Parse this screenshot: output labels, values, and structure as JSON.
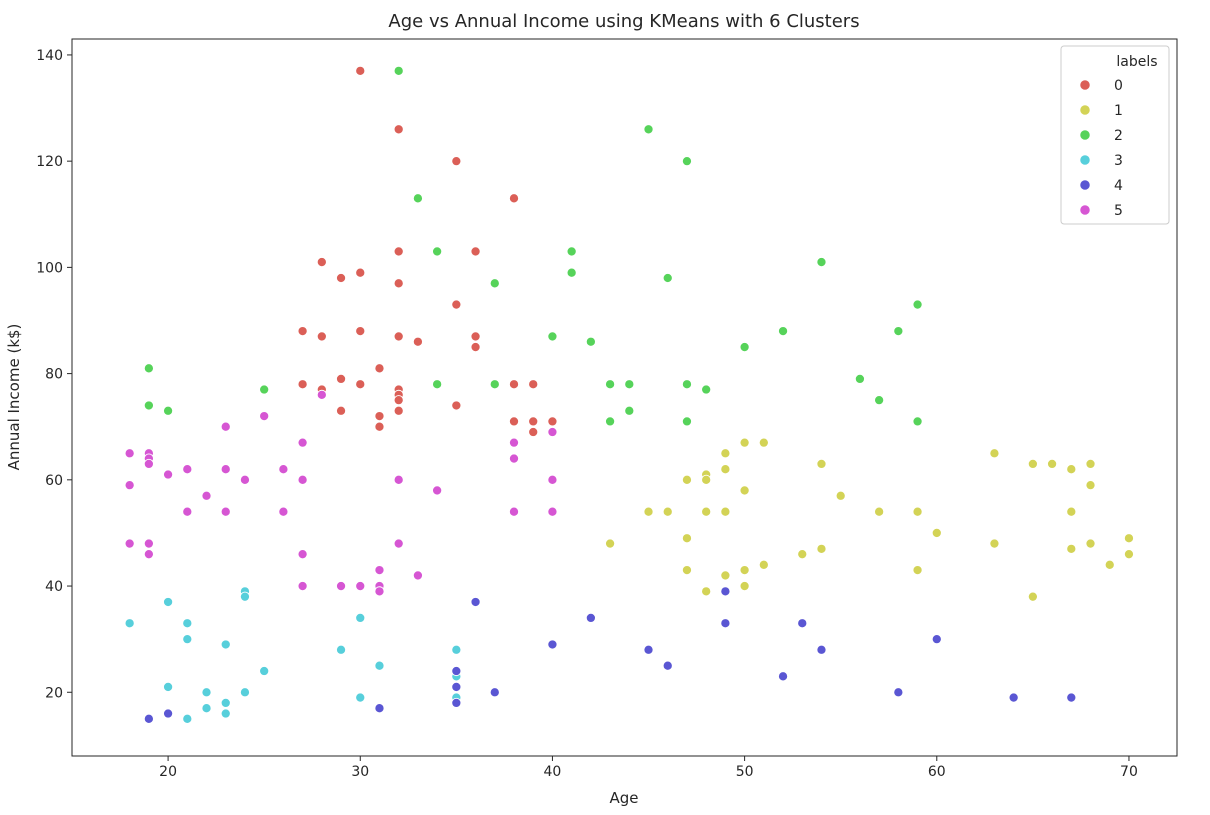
{
  "chart_data": {
    "type": "scatter",
    "title": "Age vs Annual Income using KMeans with 6 Clusters",
    "xlabel": "Age",
    "ylabel": "Annual Income (k$)",
    "xlim": [
      15,
      72.5
    ],
    "ylim": [
      8,
      143
    ],
    "xticks": [
      20,
      30,
      40,
      50,
      60,
      70
    ],
    "yticks": [
      20,
      40,
      60,
      80,
      100,
      120,
      140
    ],
    "grid": false,
    "legend": {
      "title": "labels",
      "placement": "top-right"
    },
    "series": [
      {
        "name": "0",
        "color": "#db5f57",
        "points": [
          [
            30,
            137
          ],
          [
            32,
            126
          ],
          [
            35,
            120
          ],
          [
            38,
            113
          ],
          [
            28,
            101
          ],
          [
            30,
            99
          ],
          [
            29,
            98
          ],
          [
            32,
            103
          ],
          [
            32,
            97
          ],
          [
            36,
            103
          ],
          [
            35,
            93
          ],
          [
            27,
            88
          ],
          [
            30,
            88
          ],
          [
            28,
            87
          ],
          [
            32,
            87
          ],
          [
            33,
            86
          ],
          [
            36,
            87
          ],
          [
            36,
            85
          ],
          [
            31,
            81
          ],
          [
            29,
            79
          ],
          [
            27,
            78
          ],
          [
            28,
            77
          ],
          [
            30,
            78
          ],
          [
            32,
            77
          ],
          [
            32,
            76
          ],
          [
            32,
            75
          ],
          [
            38,
            78
          ],
          [
            39,
            78
          ],
          [
            29,
            73
          ],
          [
            32,
            73
          ],
          [
            31,
            72
          ],
          [
            31,
            70
          ],
          [
            35,
            74
          ],
          [
            38,
            71
          ],
          [
            39,
            71
          ],
          [
            40,
            71
          ],
          [
            39,
            69
          ]
        ]
      },
      {
        "name": "1",
        "color": "#d3d356",
        "points": [
          [
            43,
            48
          ],
          [
            45,
            54
          ],
          [
            46,
            54
          ],
          [
            47,
            60
          ],
          [
            47,
            49
          ],
          [
            47,
            43
          ],
          [
            48,
            61
          ],
          [
            48,
            60
          ],
          [
            48,
            54
          ],
          [
            48,
            39
          ],
          [
            49,
            65
          ],
          [
            49,
            62
          ],
          [
            49,
            54
          ],
          [
            49,
            42
          ],
          [
            50,
            67
          ],
          [
            50,
            58
          ],
          [
            50,
            43
          ],
          [
            50,
            40
          ],
          [
            51,
            67
          ],
          [
            51,
            44
          ],
          [
            53,
            46
          ],
          [
            54,
            63
          ],
          [
            54,
            47
          ],
          [
            55,
            57
          ],
          [
            57,
            54
          ],
          [
            59,
            54
          ],
          [
            59,
            43
          ],
          [
            60,
            50
          ],
          [
            63,
            65
          ],
          [
            63,
            48
          ],
          [
            65,
            63
          ],
          [
            65,
            38
          ],
          [
            66,
            63
          ],
          [
            67,
            62
          ],
          [
            67,
            54
          ],
          [
            67,
            47
          ],
          [
            68,
            63
          ],
          [
            68,
            59
          ],
          [
            68,
            48
          ],
          [
            69,
            44
          ],
          [
            70,
            49
          ],
          [
            70,
            46
          ]
        ]
      },
      {
        "name": "2",
        "color": "#56d35a",
        "points": [
          [
            32,
            137
          ],
          [
            45,
            126
          ],
          [
            47,
            120
          ],
          [
            33,
            113
          ],
          [
            34,
            103
          ],
          [
            41,
            103
          ],
          [
            41,
            99
          ],
          [
            46,
            98
          ],
          [
            37,
            97
          ],
          [
            54,
            101
          ],
          [
            59,
            93
          ],
          [
            40,
            87
          ],
          [
            42,
            86
          ],
          [
            50,
            85
          ],
          [
            52,
            88
          ],
          [
            58,
            88
          ],
          [
            56,
            79
          ],
          [
            19,
            81
          ],
          [
            25,
            77
          ],
          [
            34,
            78
          ],
          [
            37,
            78
          ],
          [
            43,
            78
          ],
          [
            44,
            78
          ],
          [
            47,
            78
          ],
          [
            48,
            77
          ],
          [
            57,
            75
          ],
          [
            19,
            74
          ],
          [
            20,
            73
          ],
          [
            44,
            73
          ],
          [
            43,
            71
          ],
          [
            47,
            71
          ],
          [
            59,
            71
          ]
        ]
      },
      {
        "name": "3",
        "color": "#57cfdb",
        "points": [
          [
            18,
            33
          ],
          [
            20,
            37
          ],
          [
            20,
            21
          ],
          [
            21,
            33
          ],
          [
            21,
            30
          ],
          [
            21,
            15
          ],
          [
            22,
            20
          ],
          [
            22,
            17
          ],
          [
            23,
            29
          ],
          [
            23,
            18
          ],
          [
            23,
            16
          ],
          [
            24,
            39
          ],
          [
            24,
            38
          ],
          [
            24,
            20
          ],
          [
            25,
            24
          ],
          [
            29,
            28
          ],
          [
            30,
            34
          ],
          [
            30,
            19
          ],
          [
            31,
            25
          ],
          [
            35,
            28
          ],
          [
            35,
            23
          ],
          [
            35,
            19
          ]
        ]
      },
      {
        "name": "4",
        "color": "#5a56d3",
        "points": [
          [
            19,
            15
          ],
          [
            20,
            16
          ],
          [
            31,
            17
          ],
          [
            35,
            24
          ],
          [
            35,
            21
          ],
          [
            35,
            18
          ],
          [
            36,
            37
          ],
          [
            37,
            20
          ],
          [
            40,
            29
          ],
          [
            42,
            34
          ],
          [
            45,
            28
          ],
          [
            46,
            25
          ],
          [
            49,
            39
          ],
          [
            49,
            33
          ],
          [
            52,
            23
          ],
          [
            53,
            33
          ],
          [
            54,
            28
          ],
          [
            58,
            20
          ],
          [
            60,
            30
          ],
          [
            64,
            19
          ],
          [
            67,
            19
          ]
        ]
      },
      {
        "name": "5",
        "color": "#d656d3",
        "points": [
          [
            18,
            65
          ],
          [
            18,
            59
          ],
          [
            18,
            48
          ],
          [
            19,
            65
          ],
          [
            19,
            64
          ],
          [
            19,
            63
          ],
          [
            19,
            48
          ],
          [
            19,
            46
          ],
          [
            20,
            61
          ],
          [
            21,
            62
          ],
          [
            21,
            54
          ],
          [
            22,
            57
          ],
          [
            23,
            70
          ],
          [
            23,
            62
          ],
          [
            23,
            54
          ],
          [
            24,
            60
          ],
          [
            25,
            72
          ],
          [
            26,
            62
          ],
          [
            26,
            54
          ],
          [
            27,
            67
          ],
          [
            27,
            60
          ],
          [
            27,
            46
          ],
          [
            27,
            40
          ],
          [
            28,
            76
          ],
          [
            29,
            40
          ],
          [
            30,
            40
          ],
          [
            31,
            43
          ],
          [
            31,
            40
          ],
          [
            31,
            39
          ],
          [
            32,
            60
          ],
          [
            32,
            48
          ],
          [
            33,
            42
          ],
          [
            34,
            58
          ],
          [
            38,
            67
          ],
          [
            38,
            64
          ],
          [
            38,
            54
          ],
          [
            40,
            69
          ],
          [
            40,
            60
          ],
          [
            40,
            54
          ]
        ]
      }
    ]
  }
}
